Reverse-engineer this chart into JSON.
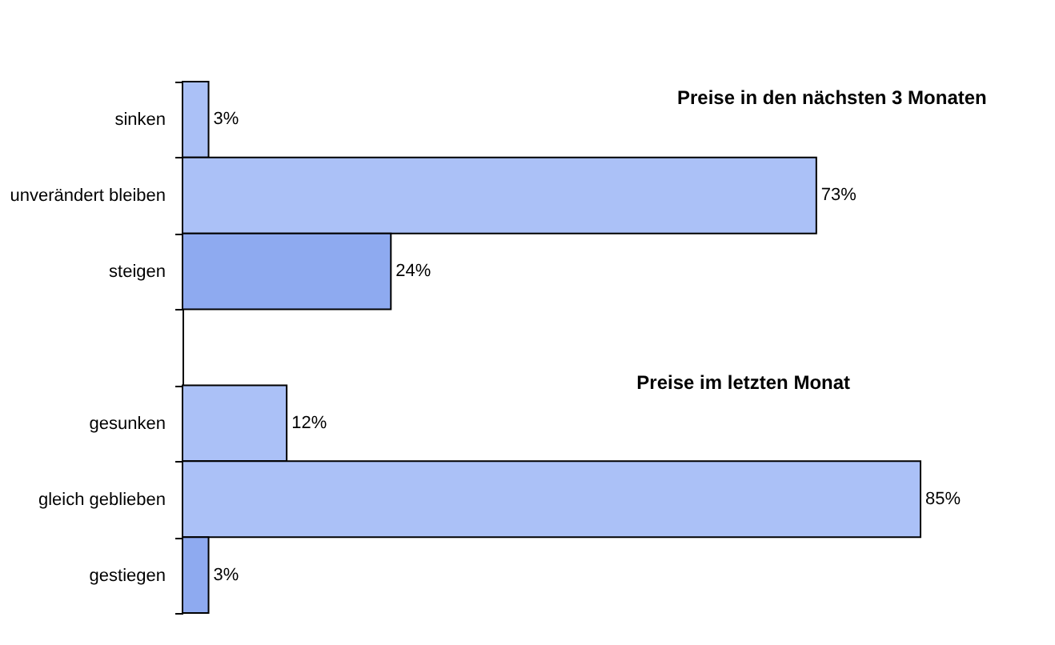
{
  "chart_data": {
    "type": "bar",
    "orientation": "horizontal",
    "categories": [
      "sinken",
      "unverändert bleiben",
      "steigen",
      null,
      "gesunken",
      "gleich geblieben",
      "gestiegen"
    ],
    "values": [
      3,
      73,
      24,
      null,
      12,
      85,
      3
    ],
    "colors": [
      "#abc1f7",
      "#abc1f7",
      "#8eaaf0",
      "#abc1f7",
      "#abc1f7",
      "#abc1f7",
      "#8eaaf0"
    ],
    "value_labels": [
      "3%",
      "73%",
      "24%",
      null,
      "12%",
      "85%",
      "3%"
    ],
    "annotations": [
      "Preise in den nächsten 3 Monaten",
      "Preise im letzten Monat"
    ],
    "grid": false
  }
}
